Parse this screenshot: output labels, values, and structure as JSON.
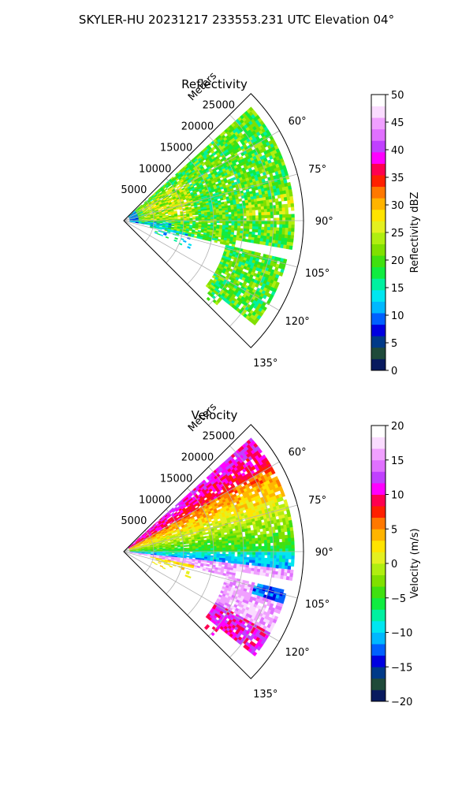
{
  "title": "SKYLER-HU  20231217  233553.231 UTC Elevation 04°",
  "chart_data": [
    {
      "type": "heatmap",
      "projection": "polar-sector",
      "title": "Reflectivity",
      "radial_label": "Meters",
      "radial_ticks": [
        5000,
        10000,
        15000,
        20000,
        25000
      ],
      "radial_range": [
        0,
        30000
      ],
      "azimuth_ticks": [
        "60°",
        "75°",
        "90°",
        "105°",
        "120°",
        "135°"
      ],
      "azimuth_range": [
        45,
        135
      ],
      "grid": true,
      "colorbar": {
        "label": "Reflectivity dBZ",
        "min": 0,
        "max": 50,
        "ticks": [
          0,
          5,
          10,
          15,
          20,
          25,
          30,
          35,
          40,
          45,
          50
        ],
        "tick_labels": [
          "0",
          "5",
          "10",
          "15",
          "20",
          "25",
          "30",
          "35",
          "40",
          "45",
          "50"
        ],
        "colors": [
          "#081a5e",
          "#1f4a3a",
          "#003a88",
          "#0000e0",
          "#0060ff",
          "#00b8ff",
          "#00e6f0",
          "#00f0a0",
          "#10ec40",
          "#40e010",
          "#80e000",
          "#b0ee10",
          "#e4f020",
          "#ffe400",
          "#ffb400",
          "#ff7800",
          "#ff2000",
          "#ff0050",
          "#ff00ff",
          "#c040ff",
          "#e070ff",
          "#f0a0ff",
          "#fadcff",
          "#ffffff"
        ]
      }
    },
    {
      "type": "heatmap",
      "projection": "polar-sector",
      "title": "Velocity",
      "radial_label": "Meters",
      "radial_ticks": [
        5000,
        10000,
        15000,
        20000,
        25000
      ],
      "radial_range": [
        0,
        30000
      ],
      "azimuth_ticks": [
        "60°",
        "75°",
        "90°",
        "105°",
        "120°",
        "135°"
      ],
      "azimuth_range": [
        45,
        135
      ],
      "grid": true,
      "colorbar": {
        "label": "Velocity (m/s)",
        "min": -20,
        "max": 20,
        "ticks": [
          -20,
          -15,
          -10,
          -5,
          0,
          5,
          10,
          15,
          20
        ],
        "tick_labels": [
          "−20",
          "−15",
          "−10",
          "−5",
          "0",
          "5",
          "10",
          "15",
          "20"
        ],
        "colors": [
          "#081a5e",
          "#1f4a3a",
          "#003a88",
          "#0000e0",
          "#0060ff",
          "#00b8ff",
          "#00e6f0",
          "#00f0a0",
          "#10ec40",
          "#40e010",
          "#80e000",
          "#b0ee10",
          "#e4f020",
          "#ffe400",
          "#ffb400",
          "#ff7800",
          "#ff2000",
          "#ff0050",
          "#ff00ff",
          "#c040ff",
          "#e070ff",
          "#f0a0ff",
          "#fadcff",
          "#ffffff"
        ]
      }
    }
  ]
}
